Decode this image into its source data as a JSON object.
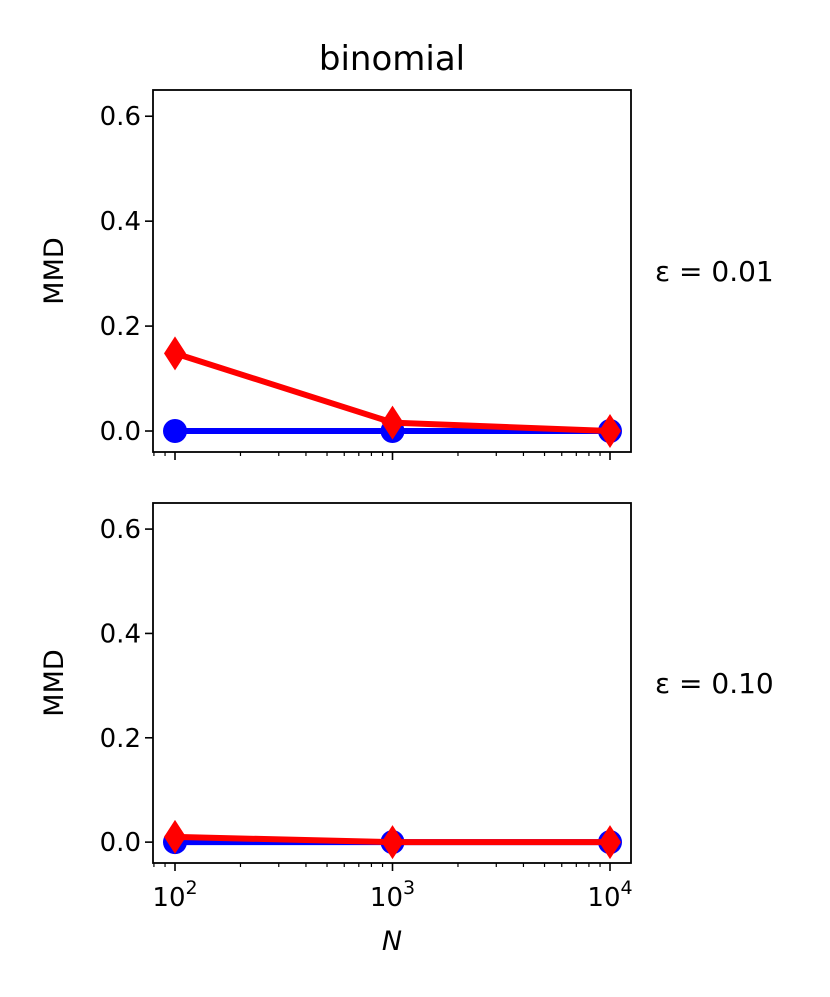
{
  "chart_data": {
    "type": "line",
    "title": "binomial",
    "xlabel": "N",
    "ylabel": "MMD",
    "xscale": "log",
    "x": [
      100,
      1000,
      10000
    ],
    "xtick_labels": [
      {
        "base": "10",
        "exp": "2"
      },
      {
        "base": "10",
        "exp": "3"
      },
      {
        "base": "10",
        "exp": "4"
      }
    ],
    "ylim": [
      -0.04,
      0.65
    ],
    "yticks": [
      "0.0",
      "0.2",
      "0.4",
      "0.6"
    ],
    "ytick_values": [
      0.0,
      0.2,
      0.4,
      0.6
    ],
    "panels": [
      {
        "label": "ε = 0.01",
        "series": [
          {
            "color": "#0000ff",
            "marker": "circle",
            "values": [
              0.0,
              0.0,
              0.0
            ]
          },
          {
            "color": "#ff0000",
            "marker": "diamond",
            "values": [
              0.148,
              0.016,
              0.0
            ]
          }
        ]
      },
      {
        "label": "ε = 0.10",
        "series": [
          {
            "color": "#0000ff",
            "marker": "circle",
            "values": [
              0.0,
              0.0,
              0.0
            ]
          },
          {
            "color": "#ff0000",
            "marker": "diamond",
            "values": [
              0.01,
              0.0,
              0.0
            ]
          }
        ]
      }
    ]
  }
}
